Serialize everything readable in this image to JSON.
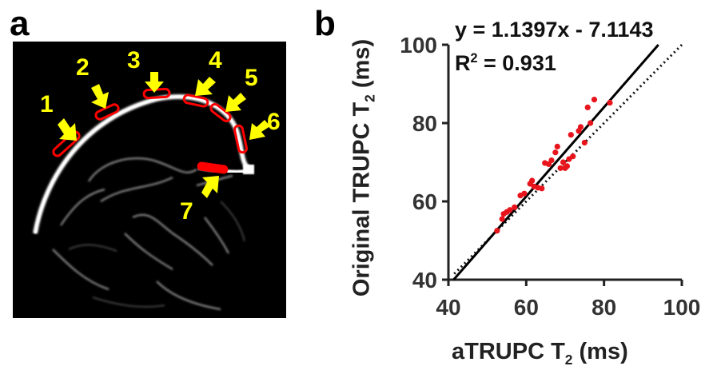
{
  "panels": {
    "a_label": "a",
    "b_label": "b"
  },
  "mri": {
    "roi_labels": [
      "1",
      "2",
      "3",
      "4",
      "5",
      "6",
      "7"
    ],
    "colors": {
      "arrow": "#ffff00",
      "roi": "#ff0000",
      "background": "#000000"
    }
  },
  "chart_data": {
    "type": "scatter",
    "xlabel_main": "aTRUPC T",
    "xlabel_sub": "2",
    "xlabel_unit": " (ms)",
    "ylabel_main": "Original TRUPC T",
    "ylabel_sub": "2",
    "ylabel_unit": " (ms)",
    "xlim": [
      40,
      100
    ],
    "ylim": [
      40,
      100
    ],
    "xticks": [
      40,
      60,
      80,
      100
    ],
    "yticks": [
      40,
      60,
      80,
      100
    ],
    "equation": "y = 1.1397x - 7.1143",
    "r2_label": "R",
    "r2_sup": "2",
    "r2_value": " = 0.931",
    "fit": {
      "slope": 1.1397,
      "intercept": -7.1143
    },
    "identity_line": true,
    "point_color": "#e8141b",
    "points": [
      [
        52.5,
        52.5
      ],
      [
        53.8,
        55.5
      ],
      [
        54.2,
        56.8
      ],
      [
        55.0,
        57.3
      ],
      [
        55.8,
        57.8
      ],
      [
        57.0,
        58.5
      ],
      [
        58.5,
        61.5
      ],
      [
        59.5,
        62.0
      ],
      [
        61.0,
        64.5
      ],
      [
        61.5,
        65.3
      ],
      [
        62.0,
        63.8
      ],
      [
        63.0,
        63.5
      ],
      [
        64.0,
        63.3
      ],
      [
        64.8,
        69.8
      ],
      [
        65.8,
        69.5
      ],
      [
        66.5,
        70.5
      ],
      [
        67.5,
        72.5
      ],
      [
        68.0,
        74.0
      ],
      [
        68.8,
        68.5
      ],
      [
        69.5,
        70.0
      ],
      [
        70.0,
        68.5
      ],
      [
        70.5,
        69.0
      ],
      [
        71.0,
        70.8
      ],
      [
        71.5,
        77.0
      ],
      [
        72.0,
        71.5
      ],
      [
        73.5,
        78.0
      ],
      [
        74.0,
        79.0
      ],
      [
        75.0,
        75.0
      ],
      [
        75.8,
        84.0
      ],
      [
        76.5,
        80.0
      ],
      [
        77.5,
        86.0
      ],
      [
        81.5,
        85.2
      ]
    ]
  }
}
